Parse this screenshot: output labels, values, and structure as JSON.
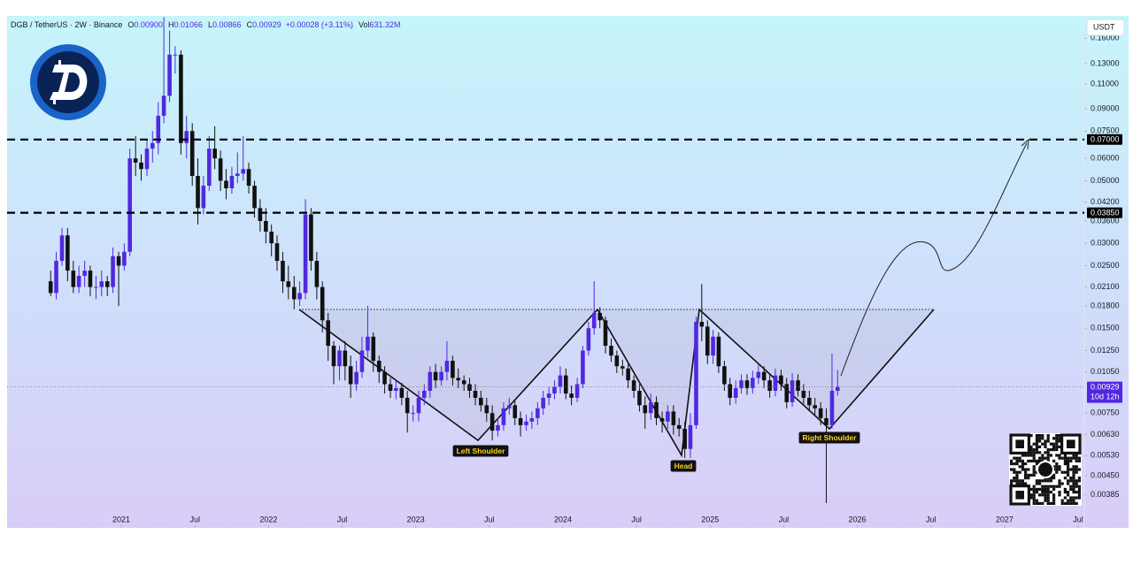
{
  "chart_data": {
    "type": "candlestick",
    "header": {
      "symbol": "DGB / TetherUS · 2W · Binance",
      "stats": [
        {
          "label": "O",
          "value": "0.00900"
        },
        {
          "label": "H",
          "value": "0.01066"
        },
        {
          "label": "L",
          "value": "0.00866"
        },
        {
          "label": "C",
          "value": "0.00929"
        }
      ],
      "change": "+0.00028 (+3.11%)",
      "volume": {
        "label": "Vol",
        "value": "631.32M"
      }
    },
    "y_unit": "USDT",
    "log_scale": true,
    "grid": false,
    "up_color": "#5128e0",
    "down_color": "#111111",
    "x": [
      2020.52,
      2020.558,
      2020.597,
      2020.635,
      2020.674,
      2020.712,
      2020.751,
      2020.789,
      2020.828,
      2020.866,
      2020.905,
      2020.943,
      2020.982,
      2021.02,
      2021.058,
      2021.097,
      2021.135,
      2021.174,
      2021.212,
      2021.251,
      2021.289,
      2021.328,
      2021.366,
      2021.405,
      2021.443,
      2021.482,
      2021.52,
      2021.558,
      2021.597,
      2021.635,
      2021.674,
      2021.712,
      2021.751,
      2021.789,
      2021.828,
      2021.866,
      2021.905,
      2021.943,
      2021.982,
      2022.02,
      2022.058,
      2022.097,
      2022.135,
      2022.174,
      2022.212,
      2022.251,
      2022.289,
      2022.328,
      2022.366,
      2022.405,
      2022.443,
      2022.482,
      2022.52,
      2022.558,
      2022.597,
      2022.635,
      2022.674,
      2022.712,
      2022.751,
      2022.789,
      2022.828,
      2022.866,
      2022.905,
      2022.943,
      2022.982,
      2023.02,
      2023.058,
      2023.097,
      2023.135,
      2023.174,
      2023.212,
      2023.251,
      2023.289,
      2023.328,
      2023.366,
      2023.405,
      2023.443,
      2023.482,
      2023.52,
      2023.558,
      2023.597,
      2023.635,
      2023.674,
      2023.712,
      2023.751,
      2023.789,
      2023.828,
      2023.866,
      2023.905,
      2023.943,
      2023.982,
      2024.02,
      2024.058,
      2024.097,
      2024.135,
      2024.174,
      2024.212,
      2024.251,
      2024.289,
      2024.328,
      2024.366,
      2024.405,
      2024.443,
      2024.482,
      2024.52,
      2024.558,
      2024.597,
      2024.635,
      2024.674,
      2024.712,
      2024.751,
      2024.789,
      2024.828,
      2024.866,
      2024.905,
      2024.943,
      2024.982,
      2025.02,
      2025.058,
      2025.097,
      2025.135,
      2025.174,
      2025.212,
      2025.251,
      2025.289,
      2025.328,
      2025.366,
      2025.405,
      2025.443,
      2025.482,
      2025.52,
      2025.558,
      2025.597,
      2025.635,
      2025.674,
      2025.712,
      2025.751,
      2025.789,
      2025.828,
      2025.866
    ],
    "open": [
      0.022,
      0.02,
      0.026,
      0.032,
      0.024,
      0.021,
      0.023,
      0.024,
      0.021,
      0.021,
      0.022,
      0.021,
      0.027,
      0.025,
      0.028,
      0.06,
      0.058,
      0.055,
      0.065,
      0.068,
      0.085,
      0.1,
      0.14,
      0.14,
      0.068,
      0.075,
      0.052,
      0.04,
      0.048,
      0.065,
      0.06,
      0.05,
      0.047,
      0.052,
      0.053,
      0.055,
      0.048,
      0.04,
      0.036,
      0.033,
      0.03,
      0.026,
      0.022,
      0.021,
      0.019,
      0.02,
      0.038,
      0.026,
      0.021,
      0.016,
      0.013,
      0.011,
      0.0125,
      0.011,
      0.0095,
      0.0105,
      0.0125,
      0.014,
      0.0115,
      0.0105,
      0.0095,
      0.009,
      0.0092,
      0.0085,
      0.0075,
      0.0075,
      0.0085,
      0.009,
      0.0105,
      0.0098,
      0.0105,
      0.0115,
      0.01,
      0.0098,
      0.0095,
      0.009,
      0.0085,
      0.008,
      0.0075,
      0.0065,
      0.0068,
      0.0078,
      0.008,
      0.0072,
      0.0068,
      0.007,
      0.0072,
      0.0078,
      0.0085,
      0.0088,
      0.0093,
      0.0102,
      0.0088,
      0.0085,
      0.0095,
      0.0125,
      0.015,
      0.017,
      0.016,
      0.013,
      0.012,
      0.011,
      0.0108,
      0.0098,
      0.009,
      0.008,
      0.0075,
      0.0082,
      0.0072,
      0.007,
      0.0076,
      0.0068,
      0.0066,
      0.0056,
      0.0068,
      0.0158,
      0.0152,
      0.012,
      0.014,
      0.011,
      0.0095,
      0.0085,
      0.0092,
      0.0098,
      0.0092,
      0.01,
      0.0105,
      0.0098,
      0.009,
      0.0102,
      0.0095,
      0.0082,
      0.0098,
      0.009,
      0.0085,
      0.008,
      0.0078,
      0.0072,
      0.0068,
      0.009
    ],
    "high": [
      0.024,
      0.028,
      0.034,
      0.034,
      0.026,
      0.025,
      0.026,
      0.025,
      0.023,
      0.024,
      0.023,
      0.029,
      0.028,
      0.03,
      0.065,
      0.072,
      0.062,
      0.07,
      0.075,
      0.095,
      0.19,
      0.17,
      0.15,
      0.145,
      0.085,
      0.08,
      0.06,
      0.052,
      0.072,
      0.078,
      0.064,
      0.055,
      0.056,
      0.063,
      0.072,
      0.058,
      0.05,
      0.043,
      0.04,
      0.035,
      0.032,
      0.028,
      0.025,
      0.023,
      0.022,
      0.043,
      0.04,
      0.028,
      0.022,
      0.017,
      0.0135,
      0.013,
      0.0135,
      0.012,
      0.0115,
      0.014,
      0.018,
      0.0145,
      0.012,
      0.011,
      0.01,
      0.0098,
      0.0096,
      0.009,
      0.008,
      0.009,
      0.0095,
      0.011,
      0.0112,
      0.011,
      0.0135,
      0.012,
      0.0108,
      0.0102,
      0.01,
      0.0095,
      0.009,
      0.0085,
      0.008,
      0.0072,
      0.0082,
      0.0085,
      0.0083,
      0.0076,
      0.0074,
      0.0076,
      0.0082,
      0.009,
      0.0093,
      0.0098,
      0.011,
      0.0108,
      0.0094,
      0.01,
      0.013,
      0.0158,
      0.022,
      0.0178,
      0.0165,
      0.0138,
      0.0125,
      0.0116,
      0.0112,
      0.0102,
      0.0095,
      0.0086,
      0.0088,
      0.0086,
      0.0076,
      0.008,
      0.008,
      0.0072,
      0.007,
      0.0075,
      0.0165,
      0.0215,
      0.016,
      0.0148,
      0.0145,
      0.0115,
      0.01,
      0.0098,
      0.0103,
      0.0103,
      0.0106,
      0.0112,
      0.011,
      0.0104,
      0.0108,
      0.0107,
      0.01,
      0.0104,
      0.0103,
      0.0095,
      0.009,
      0.0085,
      0.0082,
      0.0078,
      0.0122,
      0.01066
    ],
    "low": [
      0.0195,
      0.019,
      0.025,
      0.022,
      0.02,
      0.02,
      0.021,
      0.0195,
      0.019,
      0.0195,
      0.0195,
      0.02,
      0.018,
      0.024,
      0.027,
      0.052,
      0.05,
      0.052,
      0.058,
      0.062,
      0.08,
      0.095,
      0.12,
      0.062,
      0.06,
      0.048,
      0.035,
      0.038,
      0.046,
      0.055,
      0.046,
      0.043,
      0.045,
      0.049,
      0.05,
      0.045,
      0.037,
      0.033,
      0.03,
      0.027,
      0.024,
      0.02,
      0.019,
      0.0175,
      0.018,
      0.019,
      0.024,
      0.019,
      0.0145,
      0.0115,
      0.0095,
      0.0098,
      0.0098,
      0.0085,
      0.009,
      0.01,
      0.0118,
      0.0105,
      0.0096,
      0.0088,
      0.0085,
      0.0084,
      0.008,
      0.0064,
      0.007,
      0.007,
      0.008,
      0.0085,
      0.0092,
      0.0094,
      0.0098,
      0.0094,
      0.0092,
      0.009,
      0.0085,
      0.008,
      0.0076,
      0.007,
      0.006,
      0.0062,
      0.0065,
      0.0074,
      0.0068,
      0.0062,
      0.0065,
      0.0066,
      0.0068,
      0.0074,
      0.008,
      0.0084,
      0.0088,
      0.0084,
      0.008,
      0.0082,
      0.0092,
      0.012,
      0.0142,
      0.015,
      0.0122,
      0.0114,
      0.0104,
      0.0102,
      0.0092,
      0.0085,
      0.0076,
      0.0066,
      0.0071,
      0.0068,
      0.0064,
      0.0066,
      0.0063,
      0.0062,
      0.0052,
      0.0052,
      0.0066,
      0.0135,
      0.0112,
      0.0112,
      0.0104,
      0.009,
      0.008,
      0.0081,
      0.0088,
      0.0087,
      0.0088,
      0.0095,
      0.0092,
      0.0085,
      0.0086,
      0.009,
      0.0078,
      0.0079,
      0.0086,
      0.0081,
      0.0076,
      0.0074,
      0.0068,
      0.0036,
      0.0066,
      0.00866
    ],
    "close": [
      0.02,
      0.026,
      0.032,
      0.024,
      0.021,
      0.023,
      0.024,
      0.021,
      0.021,
      0.022,
      0.021,
      0.027,
      0.025,
      0.028,
      0.06,
      0.058,
      0.055,
      0.065,
      0.068,
      0.085,
      0.1,
      0.14,
      0.14,
      0.068,
      0.075,
      0.052,
      0.04,
      0.048,
      0.065,
      0.06,
      0.05,
      0.047,
      0.052,
      0.053,
      0.055,
      0.048,
      0.04,
      0.036,
      0.033,
      0.03,
      0.026,
      0.022,
      0.021,
      0.019,
      0.02,
      0.038,
      0.026,
      0.021,
      0.016,
      0.013,
      0.011,
      0.0125,
      0.011,
      0.0095,
      0.0105,
      0.0125,
      0.014,
      0.0115,
      0.0105,
      0.0095,
      0.009,
      0.0092,
      0.0085,
      0.0075,
      0.0075,
      0.0085,
      0.009,
      0.0105,
      0.0098,
      0.0105,
      0.0115,
      0.01,
      0.0098,
      0.0095,
      0.009,
      0.0085,
      0.008,
      0.0075,
      0.0065,
      0.0068,
      0.0078,
      0.008,
      0.0072,
      0.0068,
      0.007,
      0.0072,
      0.0078,
      0.0085,
      0.0088,
      0.0093,
      0.0102,
      0.0088,
      0.0085,
      0.0095,
      0.0125,
      0.015,
      0.017,
      0.016,
      0.013,
      0.012,
      0.011,
      0.0108,
      0.0098,
      0.009,
      0.008,
      0.0075,
      0.0082,
      0.0072,
      0.007,
      0.0076,
      0.0068,
      0.0066,
      0.0056,
      0.0068,
      0.0158,
      0.0152,
      0.012,
      0.014,
      0.011,
      0.0095,
      0.0085,
      0.0092,
      0.0098,
      0.0092,
      0.01,
      0.0105,
      0.0098,
      0.009,
      0.0102,
      0.0095,
      0.0082,
      0.0098,
      0.009,
      0.0085,
      0.008,
      0.0078,
      0.0072,
      0.0068,
      0.009,
      0.00929
    ],
    "xlim": [
      2020.224,
      2027.542
    ],
    "xticks": [
      {
        "value": 2021,
        "label": "2021"
      },
      {
        "value": 2021.5,
        "label": "Jul"
      },
      {
        "value": 2022,
        "label": "2022"
      },
      {
        "value": 2022.5,
        "label": "Jul"
      },
      {
        "value": 2023,
        "label": "2023"
      },
      {
        "value": 2023.5,
        "label": "Jul"
      },
      {
        "value": 2024,
        "label": "2024"
      },
      {
        "value": 2024.5,
        "label": "Jul"
      },
      {
        "value": 2025,
        "label": "2025"
      },
      {
        "value": 2025.5,
        "label": "Jul"
      },
      {
        "value": 2026,
        "label": "2026"
      },
      {
        "value": 2026.5,
        "label": "Jul"
      },
      {
        "value": 2027,
        "label": "2027"
      },
      {
        "value": 2027.5,
        "label": "Jul"
      }
    ],
    "ylim": [
      0.00294,
      0.192
    ],
    "yticks": [
      {
        "value": 0.16,
        "label": "0.16000"
      },
      {
        "value": 0.13,
        "label": "0.13000"
      },
      {
        "value": 0.11,
        "label": "0.11000"
      },
      {
        "value": 0.09,
        "label": "0.09000"
      },
      {
        "value": 0.075,
        "label": "0.07500"
      },
      {
        "value": 0.06,
        "label": "0.06000"
      },
      {
        "value": 0.05,
        "label": "0.05000"
      },
      {
        "value": 0.042,
        "label": "0.04200"
      },
      {
        "value": 0.036,
        "label": "0.03600"
      },
      {
        "value": 0.03,
        "label": "0.03000"
      },
      {
        "value": 0.025,
        "label": "0.02500"
      },
      {
        "value": 0.021,
        "label": "0.02100"
      },
      {
        "value": 0.018,
        "label": "0.01800"
      },
      {
        "value": 0.015,
        "label": "0.01500"
      },
      {
        "value": 0.0125,
        "label": "0.01250"
      },
      {
        "value": 0.0105,
        "label": "0.01050"
      },
      {
        "value": 0.0075,
        "label": "0.00750"
      },
      {
        "value": 0.0063,
        "label": "0.00630"
      },
      {
        "value": 0.0053,
        "label": "0.00530"
      },
      {
        "value": 0.0045,
        "label": "0.00450"
      },
      {
        "value": 0.00385,
        "label": "0.00385"
      }
    ],
    "levels": [
      {
        "value": 0.07,
        "label": "0.07000"
      },
      {
        "value": 0.0385,
        "label": "0.03850"
      }
    ],
    "current_price": {
      "value": 0.00929,
      "label": "0.00929",
      "countdown": "10d 12h"
    },
    "annotations": [
      "Left Shoulder",
      "Head",
      "Right Shoulder"
    ]
  }
}
